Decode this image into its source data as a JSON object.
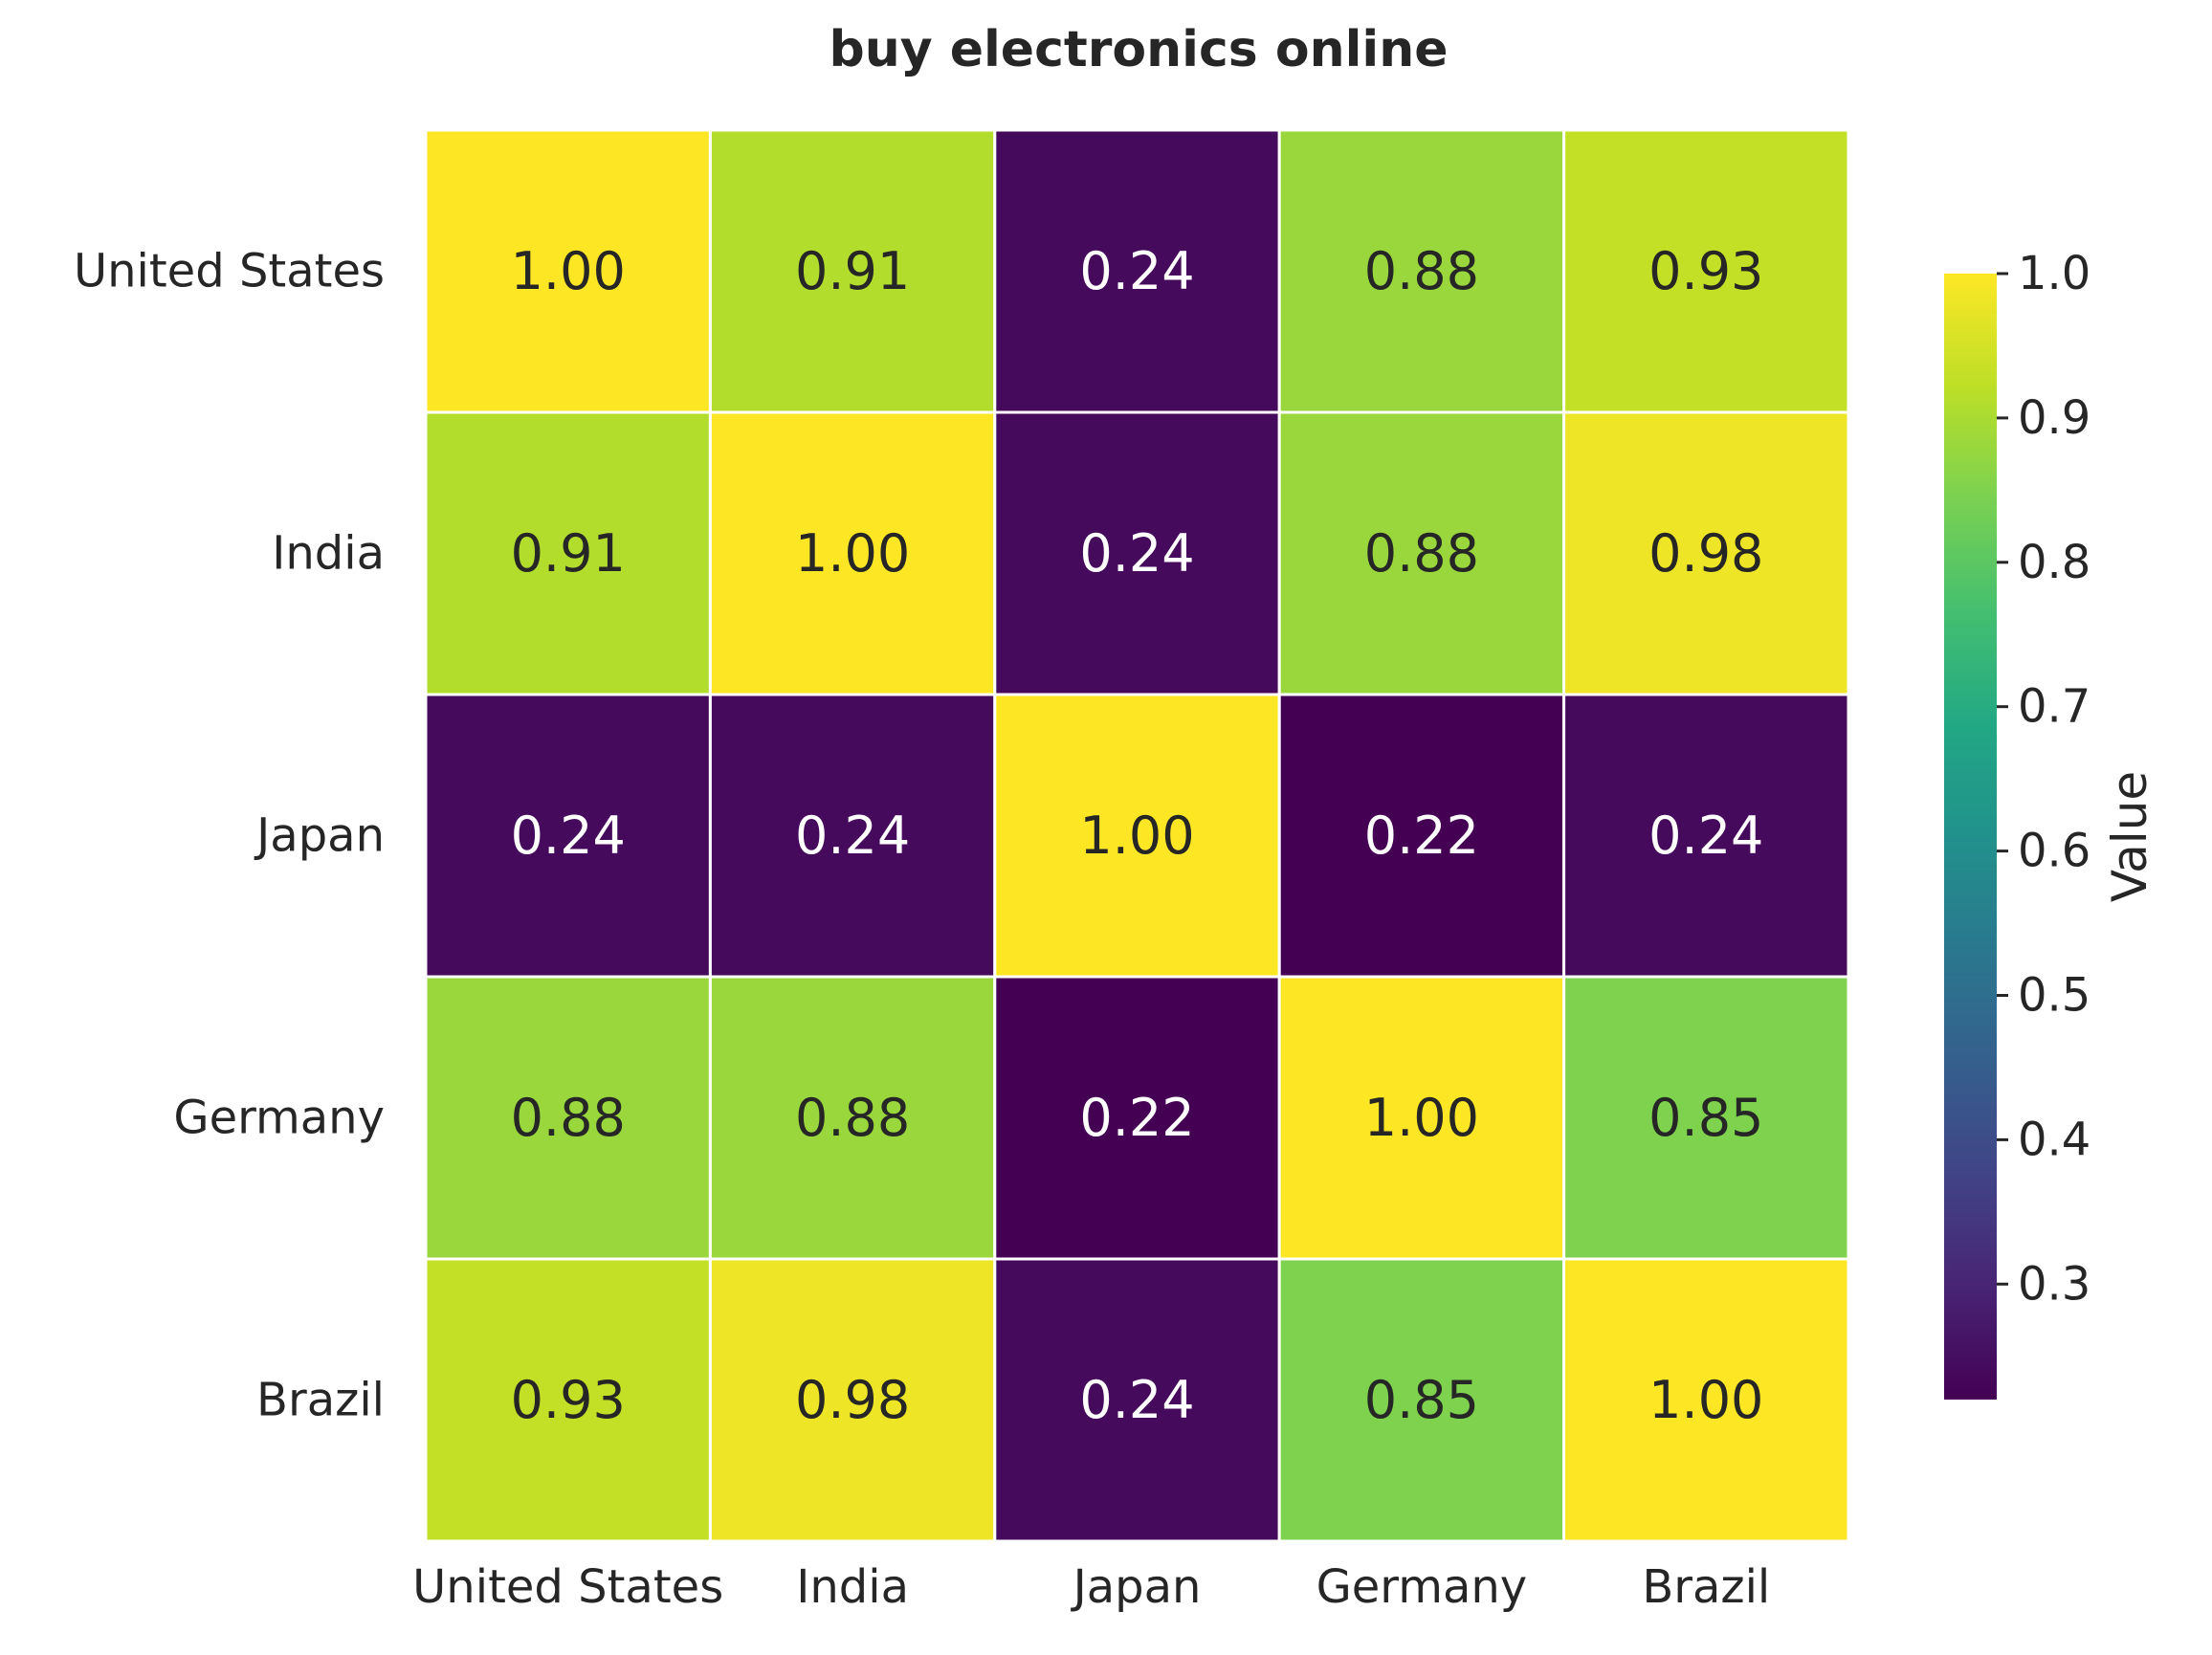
{
  "chart_data": {
    "type": "heatmap",
    "title": "buy electronics online",
    "rows": [
      "United States",
      "India",
      "Japan",
      "Germany",
      "Brazil"
    ],
    "columns": [
      "United States",
      "India",
      "Japan",
      "Germany",
      "Brazil"
    ],
    "values": [
      [
        1.0,
        0.91,
        0.24,
        0.88,
        0.93
      ],
      [
        0.91,
        1.0,
        0.24,
        0.88,
        0.98
      ],
      [
        0.24,
        0.24,
        1.0,
        0.22,
        0.24
      ],
      [
        0.88,
        0.88,
        0.22,
        1.0,
        0.85
      ],
      [
        0.93,
        0.98,
        0.24,
        0.85,
        1.0
      ]
    ],
    "value_format": "0.00",
    "colormap": "viridis",
    "colorbar": {
      "label": "Value",
      "range": [
        0.22,
        1.0
      ],
      "ticks": [
        0.3,
        0.4,
        0.5,
        0.6,
        0.7,
        0.8,
        0.9,
        1.0
      ],
      "tick_labels": [
        "0.3",
        "0.4",
        "0.5",
        "0.6",
        "0.7",
        "0.8",
        "0.9",
        "1.0"
      ]
    },
    "colors": {
      "text_dark": "#262626",
      "text_light": "#ffffff",
      "cell_border": "#ffffff"
    }
  }
}
